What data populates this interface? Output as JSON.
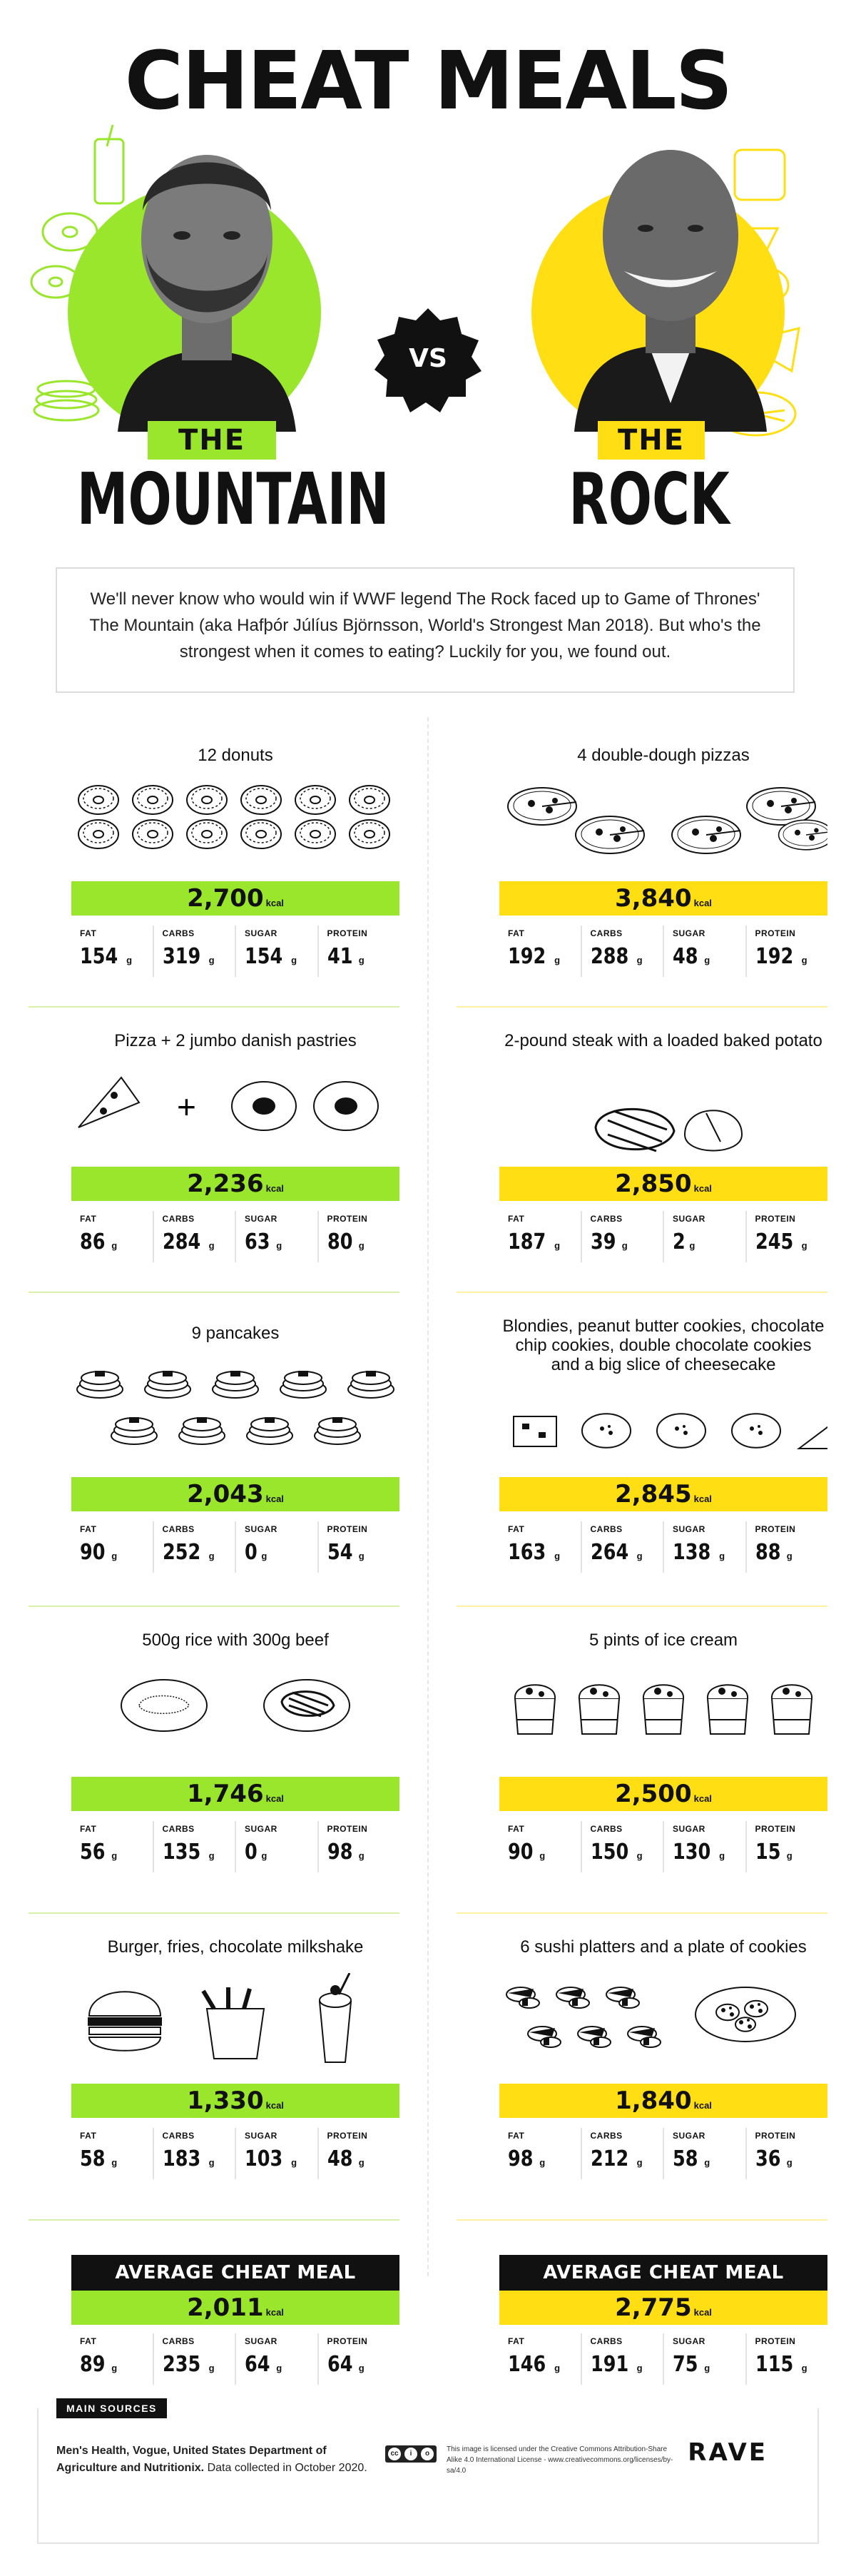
{
  "header": {
    "title": "CHEAT MEALS",
    "vs": "VS",
    "left": {
      "tag": "THE",
      "name": "MOUNTAIN"
    },
    "right": {
      "tag": "THE",
      "name": "ROCK"
    },
    "intro": "We'll never know who would win if WWF legend The Rock faced up to Game of Thrones' The Mountain (aka Hafþór Júlíus Björnsson, World's Strongest Man 2018). But who's the strongest when it comes to eating? Luckily for you, we found out."
  },
  "labels": {
    "fat": "FAT",
    "carbs": "CARBS",
    "sugar": "SUGAR",
    "protein": "PROTEIN",
    "g": "g",
    "kcal": "kcal",
    "avg": "AVERAGE CHEAT MEAL"
  },
  "mountain": [
    {
      "name": "12 donuts",
      "kcal": "2,700",
      "fat": "154",
      "carbs": "319",
      "sugar": "154",
      "protein": "41"
    },
    {
      "name": "Pizza + 2 jumbo danish pastries",
      "kcal": "2,236",
      "fat": "86",
      "carbs": "284",
      "sugar": "63",
      "protein": "80"
    },
    {
      "name": "9 pancakes",
      "kcal": "2,043",
      "fat": "90",
      "carbs": "252",
      "sugar": "0",
      "protein": "54"
    },
    {
      "name": "500g rice with 300g beef",
      "kcal": "1,746",
      "fat": "56",
      "carbs": "135",
      "sugar": "0",
      "protein": "98"
    },
    {
      "name": "Burger, fries, chocolate milkshake",
      "kcal": "1,330",
      "fat": "58",
      "carbs": "183",
      "sugar": "103",
      "protein": "48"
    }
  ],
  "rock": [
    {
      "name": "4 double-dough pizzas",
      "kcal": "3,840",
      "fat": "192",
      "carbs": "288",
      "sugar": "48",
      "protein": "192"
    },
    {
      "name": "2-pound steak with a loaded baked potato",
      "kcal": "2,850",
      "fat": "187",
      "carbs": "39",
      "sugar": "2",
      "protein": "245"
    },
    {
      "name": "Blondies, peanut butter cookies, chocolate chip cookies, double chocolate cookies and a big slice of cheesecake",
      "kcal": "2,845",
      "fat": "163",
      "carbs": "264",
      "sugar": "138",
      "protein": "88"
    },
    {
      "name": "5 pints of ice cream",
      "kcal": "2,500",
      "fat": "90",
      "carbs": "150",
      "sugar": "130",
      "protein": "15"
    },
    {
      "name": "6 sushi platters and a plate of cookies",
      "kcal": "1,840",
      "fat": "98",
      "carbs": "212",
      "sugar": "58",
      "protein": "36"
    }
  ],
  "average": {
    "mountain": {
      "kcal": "2,011",
      "fat": "89",
      "carbs": "235",
      "sugar": "64",
      "protein": "64"
    },
    "rock": {
      "kcal": "2,775",
      "fat": "146",
      "carbs": "191",
      "sugar": "75",
      "protein": "115"
    }
  },
  "footer": {
    "sources_label": "MAIN SOURCES",
    "sources_bold": "Men's Health, Vogue, United States Department of Agriculture and Nutritionix.",
    "sources_note": "Data collected in October 2020.",
    "license": "This image is licensed under the Creative Commons Attribution-Share Alike 4.0 International License - www.creativecommons.org/licenses/by-sa/4.0",
    "brand": "RAVE"
  },
  "colors": {
    "mountain": "#9ae62c",
    "rock": "#ffdf14",
    "dark": "#111111"
  },
  "icons": [
    "donut-icon",
    "pizza-slice-icon",
    "danish-pastry-icon",
    "pancake-stack-icon",
    "rice-plate-icon",
    "steak-icon",
    "burger-icon",
    "fries-icon",
    "milkshake-icon",
    "pizza-icon",
    "baked-potato-icon",
    "blondie-icon",
    "cookie-icon",
    "cheesecake-icon",
    "ice-cream-pint-icon",
    "sushi-icon",
    "cookie-plate-icon"
  ]
}
